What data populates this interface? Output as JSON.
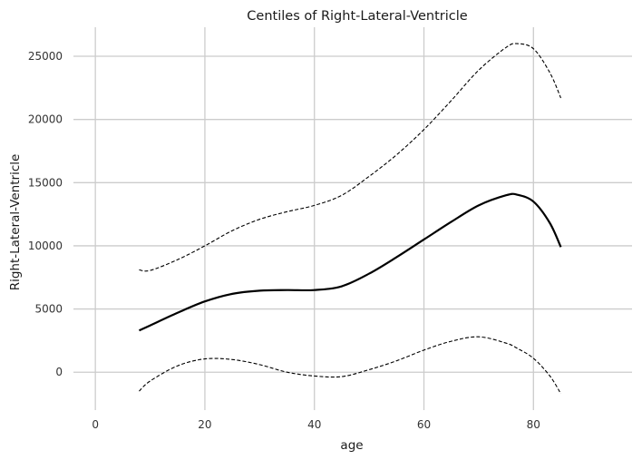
{
  "chart_data": {
    "type": "line",
    "title": "Centiles of Right-Lateral-Ventricle",
    "xlabel": "age",
    "ylabel": "Right-Lateral-Ventricle",
    "xlim": [
      -4,
      98
    ],
    "ylim": [
      -3000,
      27300
    ],
    "xticks": [
      0,
      20,
      40,
      60,
      80
    ],
    "yticks": [
      0,
      5000,
      10000,
      15000,
      20000,
      25000
    ],
    "grid": true,
    "legend": "none",
    "x": [
      8,
      10,
      15,
      20,
      25,
      30,
      35,
      40,
      45,
      50,
      55,
      60,
      65,
      70,
      75,
      77,
      80,
      83,
      85
    ],
    "series": [
      {
        "values": [
          8100,
          8050,
          8900,
          10000,
          11200,
          12100,
          12700,
          13200,
          14000,
          15500,
          17200,
          19200,
          21500,
          23900,
          25700,
          26000,
          25600,
          23700,
          21700
        ],
        "color": "#000000",
        "style": "dashed"
      },
      {
        "values": [
          3300,
          3700,
          4700,
          5600,
          6200,
          6450,
          6500,
          6500,
          6800,
          7800,
          9100,
          10500,
          11900,
          13200,
          14000,
          14050,
          13500,
          11800,
          9900
        ],
        "color": "#000000",
        "style": "solid"
      },
      {
        "values": [
          -1500,
          -700,
          500,
          1050,
          1000,
          600,
          0,
          -300,
          -350,
          200,
          900,
          1750,
          2450,
          2800,
          2300,
          1900,
          1100,
          -300,
          -1700
        ],
        "color": "#000000",
        "style": "dashed"
      }
    ]
  }
}
